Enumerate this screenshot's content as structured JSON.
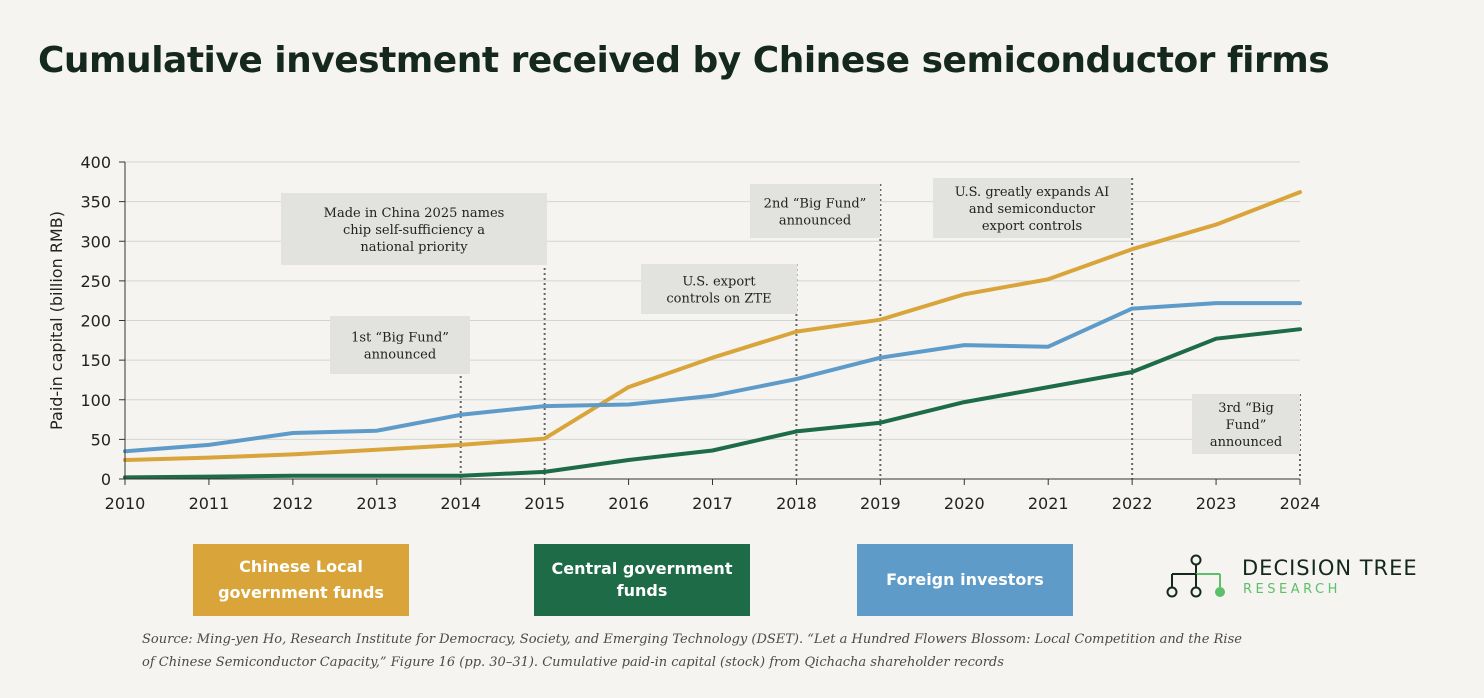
{
  "title": "Cumulative investment received by Chinese semiconductor firms",
  "chart_data": {
    "type": "line",
    "ylabel": "Paid-in capital (billion RMB)",
    "xlabel": "",
    "ylim": [
      0,
      400
    ],
    "yticks": [
      0,
      50,
      100,
      150,
      200,
      250,
      300,
      350,
      400
    ],
    "grid": true,
    "x": [
      2010,
      2011,
      2012,
      2013,
      2014,
      2015,
      2016,
      2017,
      2018,
      2019,
      2020,
      2021,
      2022,
      2023,
      2024
    ],
    "series": [
      {
        "name": "Chinese Local government funds",
        "color": "#d9a43a",
        "values": [
          24,
          27,
          31,
          37,
          43,
          51,
          116,
          153,
          186,
          201,
          233,
          252,
          290,
          321,
          362
        ]
      },
      {
        "name": "Central government funds",
        "color": "#1e6b47",
        "values": [
          2,
          3,
          4,
          4,
          4,
          9,
          24,
          36,
          60,
          71,
          97,
          116,
          135,
          177,
          189
        ]
      },
      {
        "name": "Foreign investors",
        "color": "#5f9bc8",
        "values": [
          35,
          43,
          58,
          61,
          81,
          92,
          94,
          105,
          126,
          153,
          169,
          167,
          215,
          222,
          222
        ]
      }
    ],
    "annotations": [
      {
        "year": 2014,
        "lines": [
          "1st “Big Fund”",
          "announced"
        ]
      },
      {
        "year": 2015,
        "lines": [
          "Made in China 2025 names",
          "chip self-sufficiency a",
          "national priority"
        ]
      },
      {
        "year": 2018,
        "lines": [
          "U.S. export",
          "controls on ZTE"
        ]
      },
      {
        "year": 2019,
        "lines": [
          "2nd “Big Fund”",
          "announced"
        ]
      },
      {
        "year": 2022,
        "lines": [
          "U.S. greatly expands AI",
          "and semiconductor",
          "export controls"
        ]
      },
      {
        "year": 2024,
        "lines": [
          "3rd “Big",
          "Fund”",
          "announced"
        ]
      }
    ]
  },
  "legend": {
    "local": "Chinese Local government funds",
    "central": "Central government funds",
    "foreign": "Foreign investors",
    "colors": {
      "local": "#d9a43a",
      "central": "#1e6b47",
      "foreign": "#5f9bc8"
    }
  },
  "logo": {
    "name": "DECISION TREE",
    "sub": "RESEARCH",
    "icon": "decision-tree-icon"
  },
  "source": "Source: Ming-yen Ho, Research Institute for Democracy, Society, and Emerging Technology (DSET). “Let a Hundred Flowers Blossom: Local Competition and the Rise of Chinese Semiconductor Capacity,” Figure 16 (pp. 30–31). Cumulative paid-in capital (stock) from Qichacha shareholder records"
}
